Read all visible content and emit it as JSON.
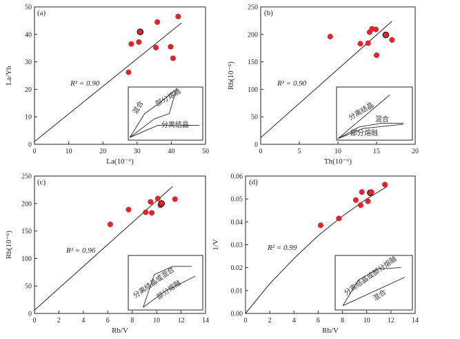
{
  "chart_data": [
    {
      "type": "scatter",
      "panel_label": "(a)",
      "xlabel": "La(10⁻⁶)",
      "ylabel": "La/Yb",
      "xlim": [
        0,
        50
      ],
      "ylim": [
        0,
        50
      ],
      "xticks": [
        0,
        10,
        20,
        30,
        40,
        50
      ],
      "yticks": [
        0,
        10,
        20,
        30,
        40,
        50
      ],
      "xtick_labels": [
        "0",
        "10",
        "20",
        "30",
        "40",
        "50"
      ],
      "ytick_labels": [
        "0",
        "10",
        "20",
        "30",
        "40",
        "50"
      ],
      "r2_label": "R² = 0.90",
      "trend_line": [
        [
          0,
          1
        ],
        [
          43,
          44.2
        ]
      ],
      "highlight_index": 3,
      "points": [
        [
          27.5,
          26.2
        ],
        [
          28.3,
          36.5
        ],
        [
          30.5,
          37.2
        ],
        [
          30.9,
          40.9
        ],
        [
          35.5,
          35.2
        ],
        [
          35.9,
          44.5
        ],
        [
          39.8,
          35.5
        ],
        [
          40.5,
          31.3
        ],
        [
          42.0,
          46.5
        ]
      ],
      "inset": {
        "labels": [
          "混合",
          "部分熔融",
          "分离结晶"
        ],
        "curves": [
          [
            [
              0.02,
              0.95
            ],
            [
              0.22,
              0.5
            ],
            [
              0.42,
              0.3
            ],
            [
              0.62,
              0.07
            ]
          ],
          [
            [
              0.02,
              0.95
            ],
            [
              0.35,
              0.6
            ],
            [
              0.55,
              0.5
            ],
            [
              0.65,
              0.02
            ]
          ],
          [
            [
              0.02,
              0.95
            ],
            [
              0.4,
              0.72
            ],
            [
              0.95,
              0.72
            ]
          ]
        ]
      }
    },
    {
      "type": "scatter",
      "panel_label": "(b)",
      "xlabel": "Th(10⁻⁶)",
      "ylabel": "Rb(10⁻⁶)",
      "xlim": [
        0,
        20
      ],
      "ylim": [
        0,
        250
      ],
      "xticks": [
        0,
        5,
        10,
        15,
        20
      ],
      "yticks": [
        0,
        50,
        100,
        150,
        200,
        250
      ],
      "xtick_labels": [
        "0",
        "5",
        "10",
        "15",
        "20"
      ],
      "ytick_labels": [
        "0",
        "50",
        "100",
        "150",
        "200",
        "250"
      ],
      "r2_label": "R² = 0.90",
      "trend_line": [
        [
          0,
          12
        ],
        [
          17,
          224
        ]
      ],
      "highlight_index": 7,
      "points": [
        [
          9.0,
          196
        ],
        [
          12.9,
          183
        ],
        [
          13.9,
          184
        ],
        [
          14.1,
          204
        ],
        [
          14.4,
          210
        ],
        [
          14.9,
          209
        ],
        [
          15.0,
          162
        ],
        [
          16.2,
          199
        ],
        [
          17.0,
          190
        ]
      ],
      "inset": {
        "labels": [
          "分离结晶",
          "混合",
          "部分熔融"
        ],
        "curves": [
          [
            [
              0.02,
              0.97
            ],
            [
              0.7,
              0.15
            ]
          ],
          [
            [
              0.02,
              0.97
            ],
            [
              0.3,
              0.75
            ],
            [
              0.6,
              0.68
            ],
            [
              0.88,
              0.68
            ]
          ],
          [
            [
              0.02,
              0.97
            ],
            [
              0.35,
              0.78
            ],
            [
              0.88,
              0.7
            ]
          ]
        ]
      }
    },
    {
      "type": "scatter",
      "panel_label": "(c)",
      "xlabel": "Rb/V",
      "ylabel": "Rb(10⁻⁶)",
      "xlim": [
        0,
        14
      ],
      "ylim": [
        0,
        250
      ],
      "xticks": [
        0,
        2,
        4,
        6,
        8,
        10,
        12,
        14
      ],
      "yticks": [
        0,
        50,
        100,
        150,
        200,
        250
      ],
      "xtick_labels": [
        "0",
        "2",
        "4",
        "6",
        "8",
        "10",
        "12",
        "14"
      ],
      "ytick_labels": [
        "0",
        "50",
        "100",
        "150",
        "200",
        "250"
      ],
      "r2_label": "R² = 0.96",
      "trend_line": [
        [
          0,
          6
        ],
        [
          11.3,
          231
        ]
      ],
      "highlight_index": 7,
      "points": [
        [
          6.2,
          162
        ],
        [
          7.7,
          189
        ],
        [
          9.1,
          184
        ],
        [
          9.5,
          203
        ],
        [
          9.6,
          183
        ],
        [
          10.1,
          209
        ],
        [
          10.3,
          197
        ],
        [
          10.4,
          200
        ],
        [
          11.5,
          208
        ]
      ],
      "inset": {
        "labels": [
          "分离结晶或混合",
          "部分熔融"
        ],
        "curves": [
          [
            [
              0.2,
              0.95
            ],
            [
              0.35,
              0.35
            ],
            [
              0.6,
              0.2
            ],
            [
              0.85,
              0.2
            ]
          ],
          [
            [
              0.2,
              0.95
            ],
            [
              0.5,
              0.65
            ],
            [
              0.9,
              0.38
            ]
          ]
        ]
      }
    },
    {
      "type": "scatter",
      "panel_label": "(d)",
      "xlabel": "Rb/V",
      "ylabel": "1/V",
      "xlim": [
        0,
        14
      ],
      "ylim": [
        0,
        0.06
      ],
      "xticks": [
        0,
        2,
        4,
        6,
        8,
        10,
        12,
        14
      ],
      "yticks": [
        0,
        0.01,
        0.02,
        0.03,
        0.04,
        0.05,
        0.06
      ],
      "xtick_labels": [
        "0",
        "2",
        "4",
        "6",
        "8",
        "10",
        "12",
        "14"
      ],
      "ytick_labels": [
        "0.00",
        "0.01",
        "0.02",
        "0.03",
        "0.04",
        "0.05",
        "0.06"
      ],
      "r2_label": "R² = 0.99",
      "trend_line": [
        [
          0,
          0.0
        ],
        [
          2,
          0.013
        ],
        [
          4,
          0.024
        ],
        [
          6,
          0.034
        ],
        [
          8,
          0.0425
        ],
        [
          10,
          0.05
        ],
        [
          11.7,
          0.0555
        ]
      ],
      "highlight_index": 6,
      "points": [
        [
          6.2,
          0.0385
        ],
        [
          7.7,
          0.0415
        ],
        [
          9.1,
          0.0495
        ],
        [
          9.5,
          0.0473
        ],
        [
          9.6,
          0.053
        ],
        [
          10.1,
          0.049
        ],
        [
          10.3,
          0.0527
        ],
        [
          10.4,
          0.053
        ],
        [
          11.5,
          0.0563
        ]
      ],
      "inset": {
        "labels": [
          "分离结晶或部分熔融",
          "混合"
        ],
        "curves": [
          [
            [
              0.1,
              0.92
            ],
            [
              0.3,
              0.45
            ],
            [
              0.55,
              0.25
            ],
            [
              0.85,
              0.22
            ]
          ],
          [
            [
              0.1,
              0.92
            ],
            [
              0.9,
              0.4
            ]
          ]
        ]
      }
    }
  ]
}
